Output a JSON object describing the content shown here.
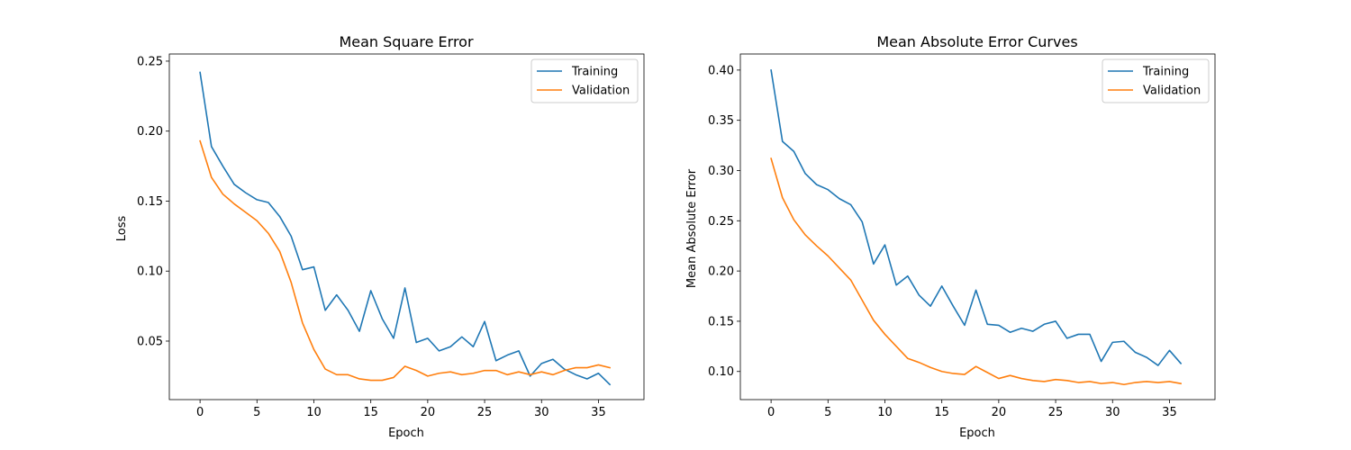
{
  "chart_data": [
    {
      "type": "line",
      "title": "Mean Square Error",
      "xlabel": "Epoch",
      "ylabel": "Loss",
      "xlim": [
        -2.7,
        39.0
      ],
      "ylim": [
        0.0082,
        0.2551
      ],
      "xticks": [
        0,
        5,
        10,
        15,
        20,
        25,
        30,
        35
      ],
      "yticks": [
        0.05,
        0.1,
        0.15,
        0.2,
        0.25
      ],
      "ytick_format": 2,
      "legend": "top-right",
      "grid": false,
      "x": [
        0,
        1,
        2,
        3,
        4,
        5,
        6,
        7,
        8,
        9,
        10,
        11,
        12,
        13,
        14,
        15,
        16,
        17,
        18,
        19,
        20,
        21,
        22,
        23,
        24,
        25,
        26,
        27,
        28,
        29,
        30,
        31,
        32,
        33,
        34,
        35,
        36
      ],
      "series": [
        {
          "name": "Training",
          "color": "#1f77b4",
          "values": [
            0.242,
            0.189,
            0.175,
            0.162,
            0.156,
            0.151,
            0.149,
            0.139,
            0.125,
            0.101,
            0.103,
            0.072,
            0.083,
            0.072,
            0.057,
            0.086,
            0.066,
            0.052,
            0.088,
            0.049,
            0.052,
            0.043,
            0.046,
            0.053,
            0.046,
            0.064,
            0.036,
            0.04,
            0.043,
            0.025,
            0.034,
            0.037,
            0.03,
            0.026,
            0.023,
            0.027,
            0.019
          ]
        },
        {
          "name": "Validation",
          "color": "#ff7f0e",
          "values": [
            0.193,
            0.167,
            0.155,
            0.148,
            0.142,
            0.136,
            0.127,
            0.114,
            0.092,
            0.063,
            0.044,
            0.03,
            0.026,
            0.026,
            0.023,
            0.022,
            0.022,
            0.024,
            0.032,
            0.029,
            0.025,
            0.027,
            0.028,
            0.026,
            0.027,
            0.029,
            0.029,
            0.026,
            0.028,
            0.026,
            0.028,
            0.026,
            0.029,
            0.031,
            0.031,
            0.033,
            0.031
          ]
        }
      ]
    },
    {
      "type": "line",
      "title": "Mean Absolute Error Curves",
      "xlabel": "Epoch",
      "ylabel": "Mean Absolute Error",
      "xlim": [
        -2.7,
        39.0
      ],
      "ylim": [
        0.072,
        0.416
      ],
      "xticks": [
        0,
        5,
        10,
        15,
        20,
        25,
        30,
        35
      ],
      "yticks": [
        0.1,
        0.15,
        0.2,
        0.25,
        0.3,
        0.35,
        0.4
      ],
      "ytick_format": 2,
      "legend": "top-right",
      "grid": false,
      "x": [
        0,
        1,
        2,
        3,
        4,
        5,
        6,
        7,
        8,
        9,
        10,
        11,
        12,
        13,
        14,
        15,
        16,
        17,
        18,
        19,
        20,
        21,
        22,
        23,
        24,
        25,
        26,
        27,
        28,
        29,
        30,
        31,
        32,
        33,
        34,
        35,
        36
      ],
      "series": [
        {
          "name": "Training",
          "color": "#1f77b4",
          "values": [
            0.4,
            0.329,
            0.319,
            0.297,
            0.286,
            0.281,
            0.272,
            0.266,
            0.249,
            0.207,
            0.226,
            0.186,
            0.195,
            0.176,
            0.165,
            0.185,
            0.165,
            0.146,
            0.181,
            0.147,
            0.146,
            0.139,
            0.143,
            0.14,
            0.147,
            0.15,
            0.133,
            0.137,
            0.137,
            0.11,
            0.129,
            0.13,
            0.119,
            0.114,
            0.106,
            0.121,
            0.108
          ]
        },
        {
          "name": "Validation",
          "color": "#ff7f0e",
          "values": [
            0.312,
            0.273,
            0.251,
            0.236,
            0.225,
            0.215,
            0.203,
            0.191,
            0.171,
            0.151,
            0.137,
            0.125,
            0.113,
            0.109,
            0.104,
            0.1,
            0.098,
            0.097,
            0.105,
            0.099,
            0.093,
            0.096,
            0.093,
            0.091,
            0.09,
            0.092,
            0.091,
            0.089,
            0.09,
            0.088,
            0.089,
            0.087,
            0.089,
            0.09,
            0.089,
            0.09,
            0.088
          ]
        }
      ]
    }
  ]
}
